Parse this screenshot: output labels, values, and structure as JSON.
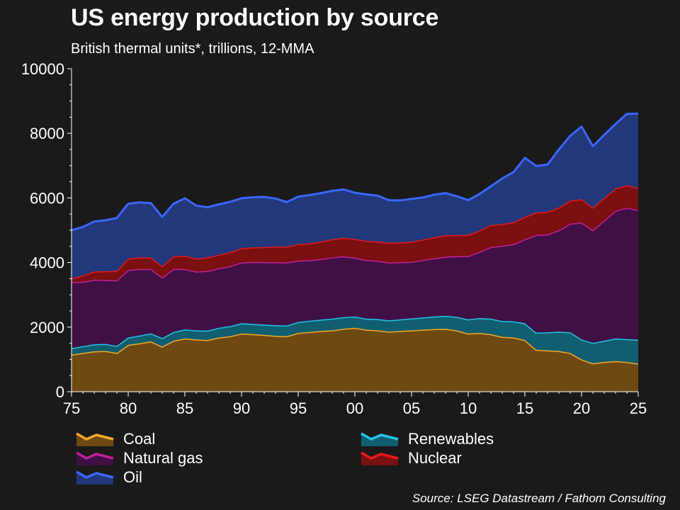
{
  "chart_data": {
    "type": "area",
    "stacked": true,
    "title": "US energy production by source",
    "subtitle": "British thermal units*, trillions, 12-MMA",
    "source": "Source: LSEG Datastream / Fathom Consulting",
    "ylim": [
      0,
      10000
    ],
    "yticks": [
      0,
      2000,
      4000,
      6000,
      8000,
      10000
    ],
    "xlim": [
      1975,
      2025
    ],
    "xticks": [
      {
        "value": 1975,
        "label": "75"
      },
      {
        "value": 1980,
        "label": "80"
      },
      {
        "value": 1985,
        "label": "85"
      },
      {
        "value": 1990,
        "label": "90"
      },
      {
        "value": 1995,
        "label": "95"
      },
      {
        "value": 2000,
        "label": "00"
      },
      {
        "value": 2005,
        "label": "05"
      },
      {
        "value": 2010,
        "label": "10"
      },
      {
        "value": 2015,
        "label": "15"
      },
      {
        "value": 2020,
        "label": "20"
      },
      {
        "value": 2025,
        "label": "25"
      }
    ],
    "legend_position": "bottom",
    "x": [
      1975,
      1976,
      1977,
      1978,
      1979,
      1980,
      1981,
      1982,
      1983,
      1984,
      1985,
      1986,
      1987,
      1988,
      1989,
      1990,
      1991,
      1992,
      1993,
      1994,
      1995,
      1996,
      1997,
      1998,
      1999,
      2000,
      2001,
      2002,
      2003,
      2004,
      2005,
      2006,
      2007,
      2008,
      2009,
      2010,
      2011,
      2012,
      2013,
      2014,
      2015,
      2016,
      2017,
      2018,
      2019,
      2020,
      2021,
      2022,
      2023,
      2024,
      2025
    ],
    "series": [
      {
        "name": "Coal",
        "line_color": "#f5a623",
        "fill_color": "#6e4a12",
        "values": [
          1150,
          1200,
          1250,
          1260,
          1200,
          1450,
          1500,
          1560,
          1400,
          1580,
          1650,
          1620,
          1600,
          1680,
          1720,
          1800,
          1780,
          1760,
          1730,
          1720,
          1820,
          1850,
          1880,
          1900,
          1950,
          1980,
          1920,
          1900,
          1860,
          1880,
          1900,
          1920,
          1940,
          1950,
          1900,
          1800,
          1820,
          1780,
          1700,
          1680,
          1600,
          1300,
          1280,
          1260,
          1200,
          1000,
          880,
          920,
          950,
          920,
          870
        ]
      },
      {
        "name": "Renewables",
        "line_color": "#20c4e8",
        "fill_color": "#0f5f70",
        "values": [
          200,
          210,
          220,
          220,
          220,
          230,
          240,
          250,
          260,
          270,
          280,
          280,
          290,
          300,
          310,
          320,
          320,
          320,
          330,
          330,
          340,
          350,
          350,
          360,
          360,
          350,
          340,
          350,
          350,
          360,
          370,
          380,
          390,
          400,
          420,
          440,
          460,
          480,
          490,
          500,
          520,
          530,
          560,
          600,
          640,
          620,
          630,
          660,
          700,
          710,
          740
        ]
      },
      {
        "name": "Natural gas",
        "line_color": "#c0209a",
        "fill_color": "#401045",
        "values": [
          2050,
          1990,
          2000,
          1980,
          2030,
          2090,
          2060,
          1990,
          1880,
          1950,
          1870,
          1820,
          1850,
          1840,
          1860,
          1880,
          1920,
          1930,
          1950,
          1950,
          1900,
          1870,
          1880,
          1900,
          1880,
          1820,
          1820,
          1800,
          1790,
          1770,
          1750,
          1780,
          1800,
          1830,
          1880,
          1960,
          2050,
          2220,
          2330,
          2390,
          2600,
          3020,
          3030,
          3140,
          3360,
          3620,
          3490,
          3720,
          3950,
          4070,
          4010
        ]
      },
      {
        "name": "Nuclear",
        "line_color": "#e81818",
        "fill_color": "#7a1010",
        "values": [
          100,
          200,
          250,
          270,
          290,
          350,
          360,
          350,
          350,
          390,
          410,
          400,
          420,
          420,
          430,
          440,
          450,
          470,
          480,
          490,
          510,
          520,
          540,
          560,
          570,
          580,
          590,
          600,
          610,
          610,
          620,
          630,
          650,
          660,
          650,
          650,
          660,
          680,
          670,
          680,
          690,
          700,
          700,
          700,
          720,
          720,
          700,
          700,
          690,
          690,
          690
        ]
      },
      {
        "name": "Oil",
        "line_color": "#3a66ff",
        "fill_color": "#22387a",
        "values": [
          1500,
          1500,
          1550,
          1580,
          1640,
          1700,
          1700,
          1690,
          1520,
          1630,
          1780,
          1640,
          1550,
          1560,
          1560,
          1550,
          1550,
          1550,
          1490,
          1380,
          1470,
          1500,
          1500,
          1500,
          1500,
          1430,
          1440,
          1420,
          1320,
          1300,
          1330,
          1300,
          1320,
          1310,
          1200,
          1080,
          1130,
          1200,
          1410,
          1550,
          1830,
          1440,
          1460,
          1800,
          2000,
          2250,
          1900,
          1950,
          2000,
          2210,
          2300
        ]
      }
    ],
    "legend": [
      {
        "label": "Coal",
        "line_color": "#f5a623",
        "fill_color": "#6e4a12"
      },
      {
        "label": "Renewables",
        "line_color": "#20c4e8",
        "fill_color": "#0f5f70"
      },
      {
        "label": "Natural gas",
        "line_color": "#c0209a",
        "fill_color": "#401045"
      },
      {
        "label": "Nuclear",
        "line_color": "#e81818",
        "fill_color": "#7a1010"
      },
      {
        "label": "Oil",
        "line_color": "#3a66ff",
        "fill_color": "#22387a"
      }
    ]
  }
}
